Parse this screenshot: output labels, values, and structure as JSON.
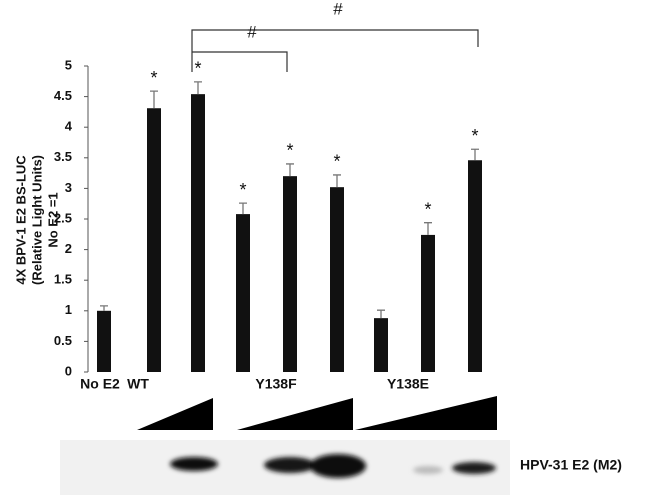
{
  "chart_data": {
    "type": "bar",
    "y_label_lines": [
      "4X BPV-1 E2 BS-LUC",
      "(Relative Light Units)",
      "No E2 =1"
    ],
    "groups": [
      "No E2",
      "WT",
      "Y138F",
      "Y138E"
    ],
    "values": [
      1.0,
      4.31,
      4.54,
      2.58,
      3.2,
      3.02,
      0.88,
      2.24,
      3.46
    ],
    "errors": [
      0.08,
      0.28,
      0.2,
      0.18,
      0.2,
      0.2,
      0.13,
      0.2,
      0.18
    ],
    "markers": [
      null,
      "*",
      "*",
      "*",
      "*",
      "*",
      null,
      "*",
      "*"
    ],
    "brackets": [
      "#",
      "#"
    ],
    "color": "#111111",
    "ylim": [
      0,
      5
    ],
    "yticks": [
      0,
      0.5,
      1,
      1.5,
      2,
      2.5,
      3,
      3.5,
      4,
      4.5,
      5
    ],
    "blot_label": "HPV-31 E2 (M2)"
  }
}
